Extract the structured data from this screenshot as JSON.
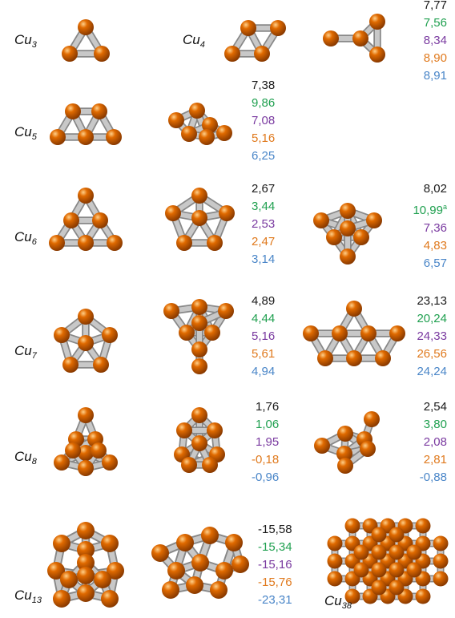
{
  "labels": {
    "cu3": {
      "base": "Cu",
      "sub": "3"
    },
    "cu4": {
      "base": "Cu",
      "sub": "4"
    },
    "cu5": {
      "base": "Cu",
      "sub": "5"
    },
    "cu6": {
      "base": "Cu",
      "sub": "6"
    },
    "cu7": {
      "base": "Cu",
      "sub": "7"
    },
    "cu8": {
      "base": "Cu",
      "sub": "8"
    },
    "cu13": {
      "base": "Cu",
      "sub": "13"
    },
    "cu38": {
      "base": "Cu",
      "sub": "38"
    }
  },
  "colors": {
    "row1": "#1a1a1a",
    "row2": "#20a050",
    "row3": "#7a3aa0",
    "row4": "#e07a1e",
    "row5": "#4a86c8",
    "atom": "#e06a00",
    "atom_edge": "#8a3a00",
    "bond": "#c8c8c8"
  },
  "values": {
    "cu4": [
      "7,77",
      "7,56",
      "8,34",
      "8,90",
      "8,91"
    ],
    "cu5": [
      "7,38",
      "9,86",
      "7,08",
      "5,16",
      "6,25"
    ],
    "cu6a": [
      "2,67",
      "3,44",
      "2,53",
      "2,47",
      "3,14"
    ],
    "cu6b": [
      "8,02",
      "10,99",
      "7,36",
      "4,83",
      "6,57"
    ],
    "cu6b_note": "a",
    "cu7a": [
      "4,89",
      "4,44",
      "5,16",
      "5,61",
      "4,94"
    ],
    "cu7b": [
      "23,13",
      "20,24",
      "24,33",
      "26,56",
      "24,24"
    ],
    "cu8a": [
      "1,76",
      "1,06",
      "1,95",
      "-0,18",
      "-0,96"
    ],
    "cu8b": [
      "2,54",
      "3,80",
      "2,08",
      "2,81",
      "-0,88"
    ],
    "cu13": [
      "-15,58",
      "-15,34",
      "-15,16",
      "-15,76",
      "-23,31"
    ]
  }
}
